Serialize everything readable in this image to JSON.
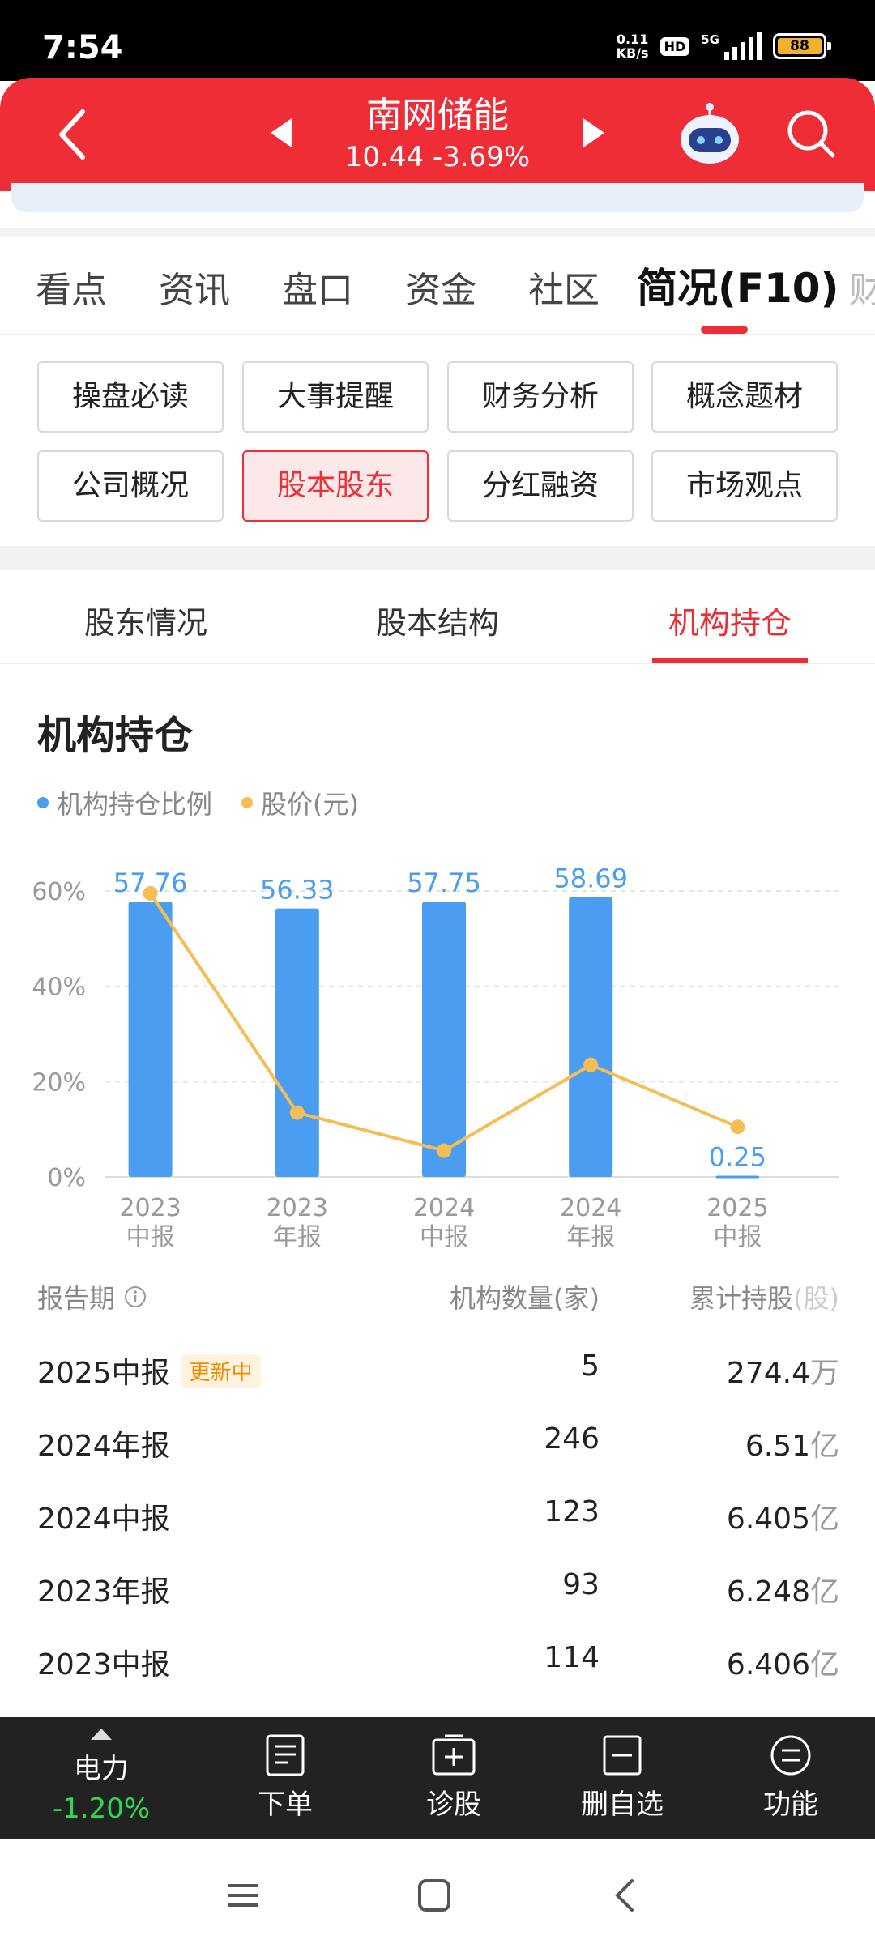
{
  "status_bar": {
    "time": "7:54",
    "net_speed_value": "0.11",
    "net_speed_unit": "KB/s",
    "hd_label": "HD",
    "network_label": "5G",
    "battery_level": "88"
  },
  "header": {
    "stock_name": "南网储能",
    "price_line": "10.44  -3.69%",
    "icons": [
      "back-arrow",
      "triangle-left",
      "triangle-right",
      "robot",
      "search"
    ]
  },
  "tabs": [
    {
      "label": "看点"
    },
    {
      "label": "资讯"
    },
    {
      "label": "盘口"
    },
    {
      "label": "资金"
    },
    {
      "label": "社区"
    },
    {
      "label": "简况(F10)",
      "active": true
    },
    {
      "label": "财"
    }
  ],
  "grid_buttons": [
    {
      "label": "操盘必读"
    },
    {
      "label": "大事提醒"
    },
    {
      "label": "财务分析"
    },
    {
      "label": "概念题材"
    },
    {
      "label": "公司概况"
    },
    {
      "label": "股本股东",
      "active": true
    },
    {
      "label": "分红融资"
    },
    {
      "label": "市场观点"
    }
  ],
  "subtabs": [
    {
      "label": "股东情况"
    },
    {
      "label": "股本结构"
    },
    {
      "label": "机构持仓",
      "active": true
    }
  ],
  "section_title": "机构持仓",
  "legend": {
    "bar_series": "机构持仓比例",
    "line_series": "股价(元)"
  },
  "colors": {
    "brand_red": "#ee2d36",
    "bar_blue": "#4a9df0",
    "line_orange": "#f6bd55",
    "positive_green": "#2dd84e"
  },
  "chart_data": {
    "type": "bar",
    "categories": [
      [
        "2023",
        "中报"
      ],
      [
        "2023",
        "年报"
      ],
      [
        "2024",
        "中报"
      ],
      [
        "2024",
        "年报"
      ],
      [
        "2025",
        "中报"
      ]
    ],
    "y_ticks": [
      "60%",
      "40%",
      "20%",
      "0%"
    ],
    "ylim": [
      0,
      60
    ],
    "series": [
      {
        "name": "机构持仓比例",
        "type": "bar",
        "values": [
          57.76,
          56.33,
          57.75,
          58.69,
          0.25
        ],
        "labels": [
          "57.76",
          "56.33",
          "57.75",
          "58.69",
          "0.25"
        ]
      },
      {
        "name": "股价(元)",
        "type": "line",
        "values": [
          59.5,
          13.5,
          5.5,
          23.5,
          10.5
        ]
      }
    ],
    "grid": true
  },
  "table": {
    "headers": {
      "period": "报告期",
      "count": "机构数量(家)",
      "holdings_num": "累计持股",
      "holdings_unit": "(股)"
    },
    "rows": [
      {
        "period": "2025中报",
        "badge": "更新中",
        "count": "5",
        "hold_num": "274.4",
        "hold_unit": "万"
      },
      {
        "period": "2024年报",
        "count": "246",
        "hold_num": "6.51",
        "hold_unit": "亿"
      },
      {
        "period": "2024中报",
        "count": "123",
        "hold_num": "6.405",
        "hold_unit": "亿"
      },
      {
        "period": "2023年报",
        "count": "93",
        "hold_num": "6.248",
        "hold_unit": "亿"
      },
      {
        "period": "2023中报",
        "count": "114",
        "hold_num": "6.406",
        "hold_unit": "亿"
      }
    ]
  },
  "bottom_bar": {
    "sector_name": "电力",
    "sector_change": "-1.20%",
    "items": [
      {
        "label": "下单",
        "icon": "order-icon"
      },
      {
        "label": "诊股",
        "icon": "diagnose-icon"
      },
      {
        "label": "删自选",
        "icon": "remove-watchlist-icon"
      },
      {
        "label": "功能",
        "icon": "menu-icon"
      }
    ]
  }
}
